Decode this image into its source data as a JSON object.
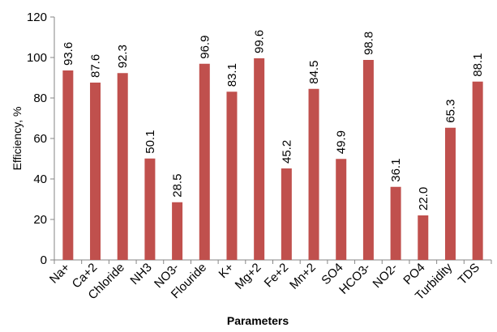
{
  "chart_data": {
    "type": "bar",
    "title": "",
    "xlabel": "Parameters",
    "ylabel": "Efficiency, %",
    "ylim": [
      0,
      120
    ],
    "yticks": [
      0,
      20,
      40,
      60,
      80,
      100,
      120
    ],
    "grid": false,
    "legend": "none",
    "bar_color": "#c0504d",
    "categories": [
      "Na+",
      "Ca+2",
      "Chloride",
      "NH3",
      "NO3-",
      "Flouride",
      "K+",
      "Mg+2",
      "Fe+2",
      "Mn+2",
      "SO4",
      "HCO3-",
      "NO2-",
      "PO4",
      "Turbidity",
      "TDS"
    ],
    "values": [
      93.6,
      87.6,
      92.3,
      50.1,
      28.5,
      96.9,
      83.1,
      99.6,
      45.2,
      84.5,
      49.9,
      98.8,
      36.1,
      22.0,
      65.3,
      88.1
    ],
    "data_labels": [
      "93.6",
      "87.6",
      "92.3",
      "50.1",
      "28.5",
      "96.9",
      "83.1",
      "99.6",
      "45.2",
      "84.5",
      "49.9",
      "98.8",
      "36.1",
      "22.0",
      "65.3",
      "88.1"
    ]
  }
}
